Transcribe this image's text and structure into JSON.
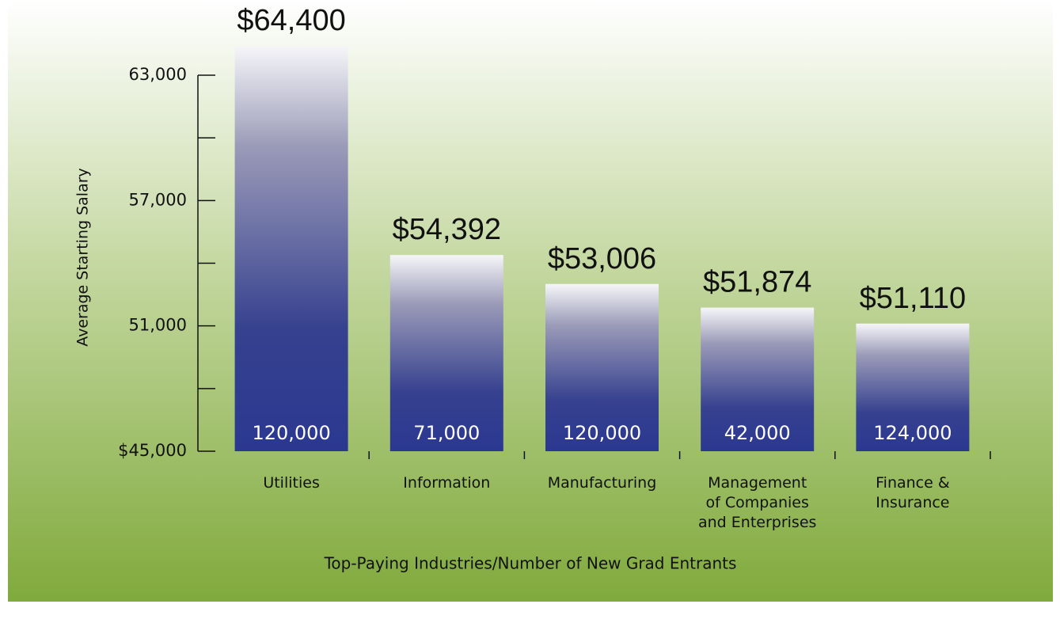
{
  "chart_data": {
    "type": "bar",
    "categories": [
      "Utilities",
      "Information",
      "Manufacturing",
      "Management\nof Companies\nand Enterprises",
      "Finance &\nInsurance"
    ],
    "values": [
      64400,
      54392,
      53006,
      51874,
      51110
    ],
    "value_labels": [
      "$64,400",
      "$54,392",
      "$53,006",
      "$51,874",
      "$51,110"
    ],
    "entrants": [
      "120,000",
      "71,000",
      "120,000",
      "42,000",
      "124,000"
    ],
    "ylabel": "Average Starting Salary",
    "xlabel": "Top-Paying Industries/Number of New Grad Entrants",
    "ylim": [
      45000,
      63000
    ],
    "yticks": [
      {
        "value": 45000,
        "label": "$45,000"
      },
      {
        "value": 51000,
        "label": "51,000"
      },
      {
        "value": 57000,
        "label": "57,000"
      },
      {
        "value": 63000,
        "label": "63,000"
      }
    ],
    "minor_yticks": [
      48000,
      54000,
      60000
    ],
    "color": "#2b3890"
  }
}
